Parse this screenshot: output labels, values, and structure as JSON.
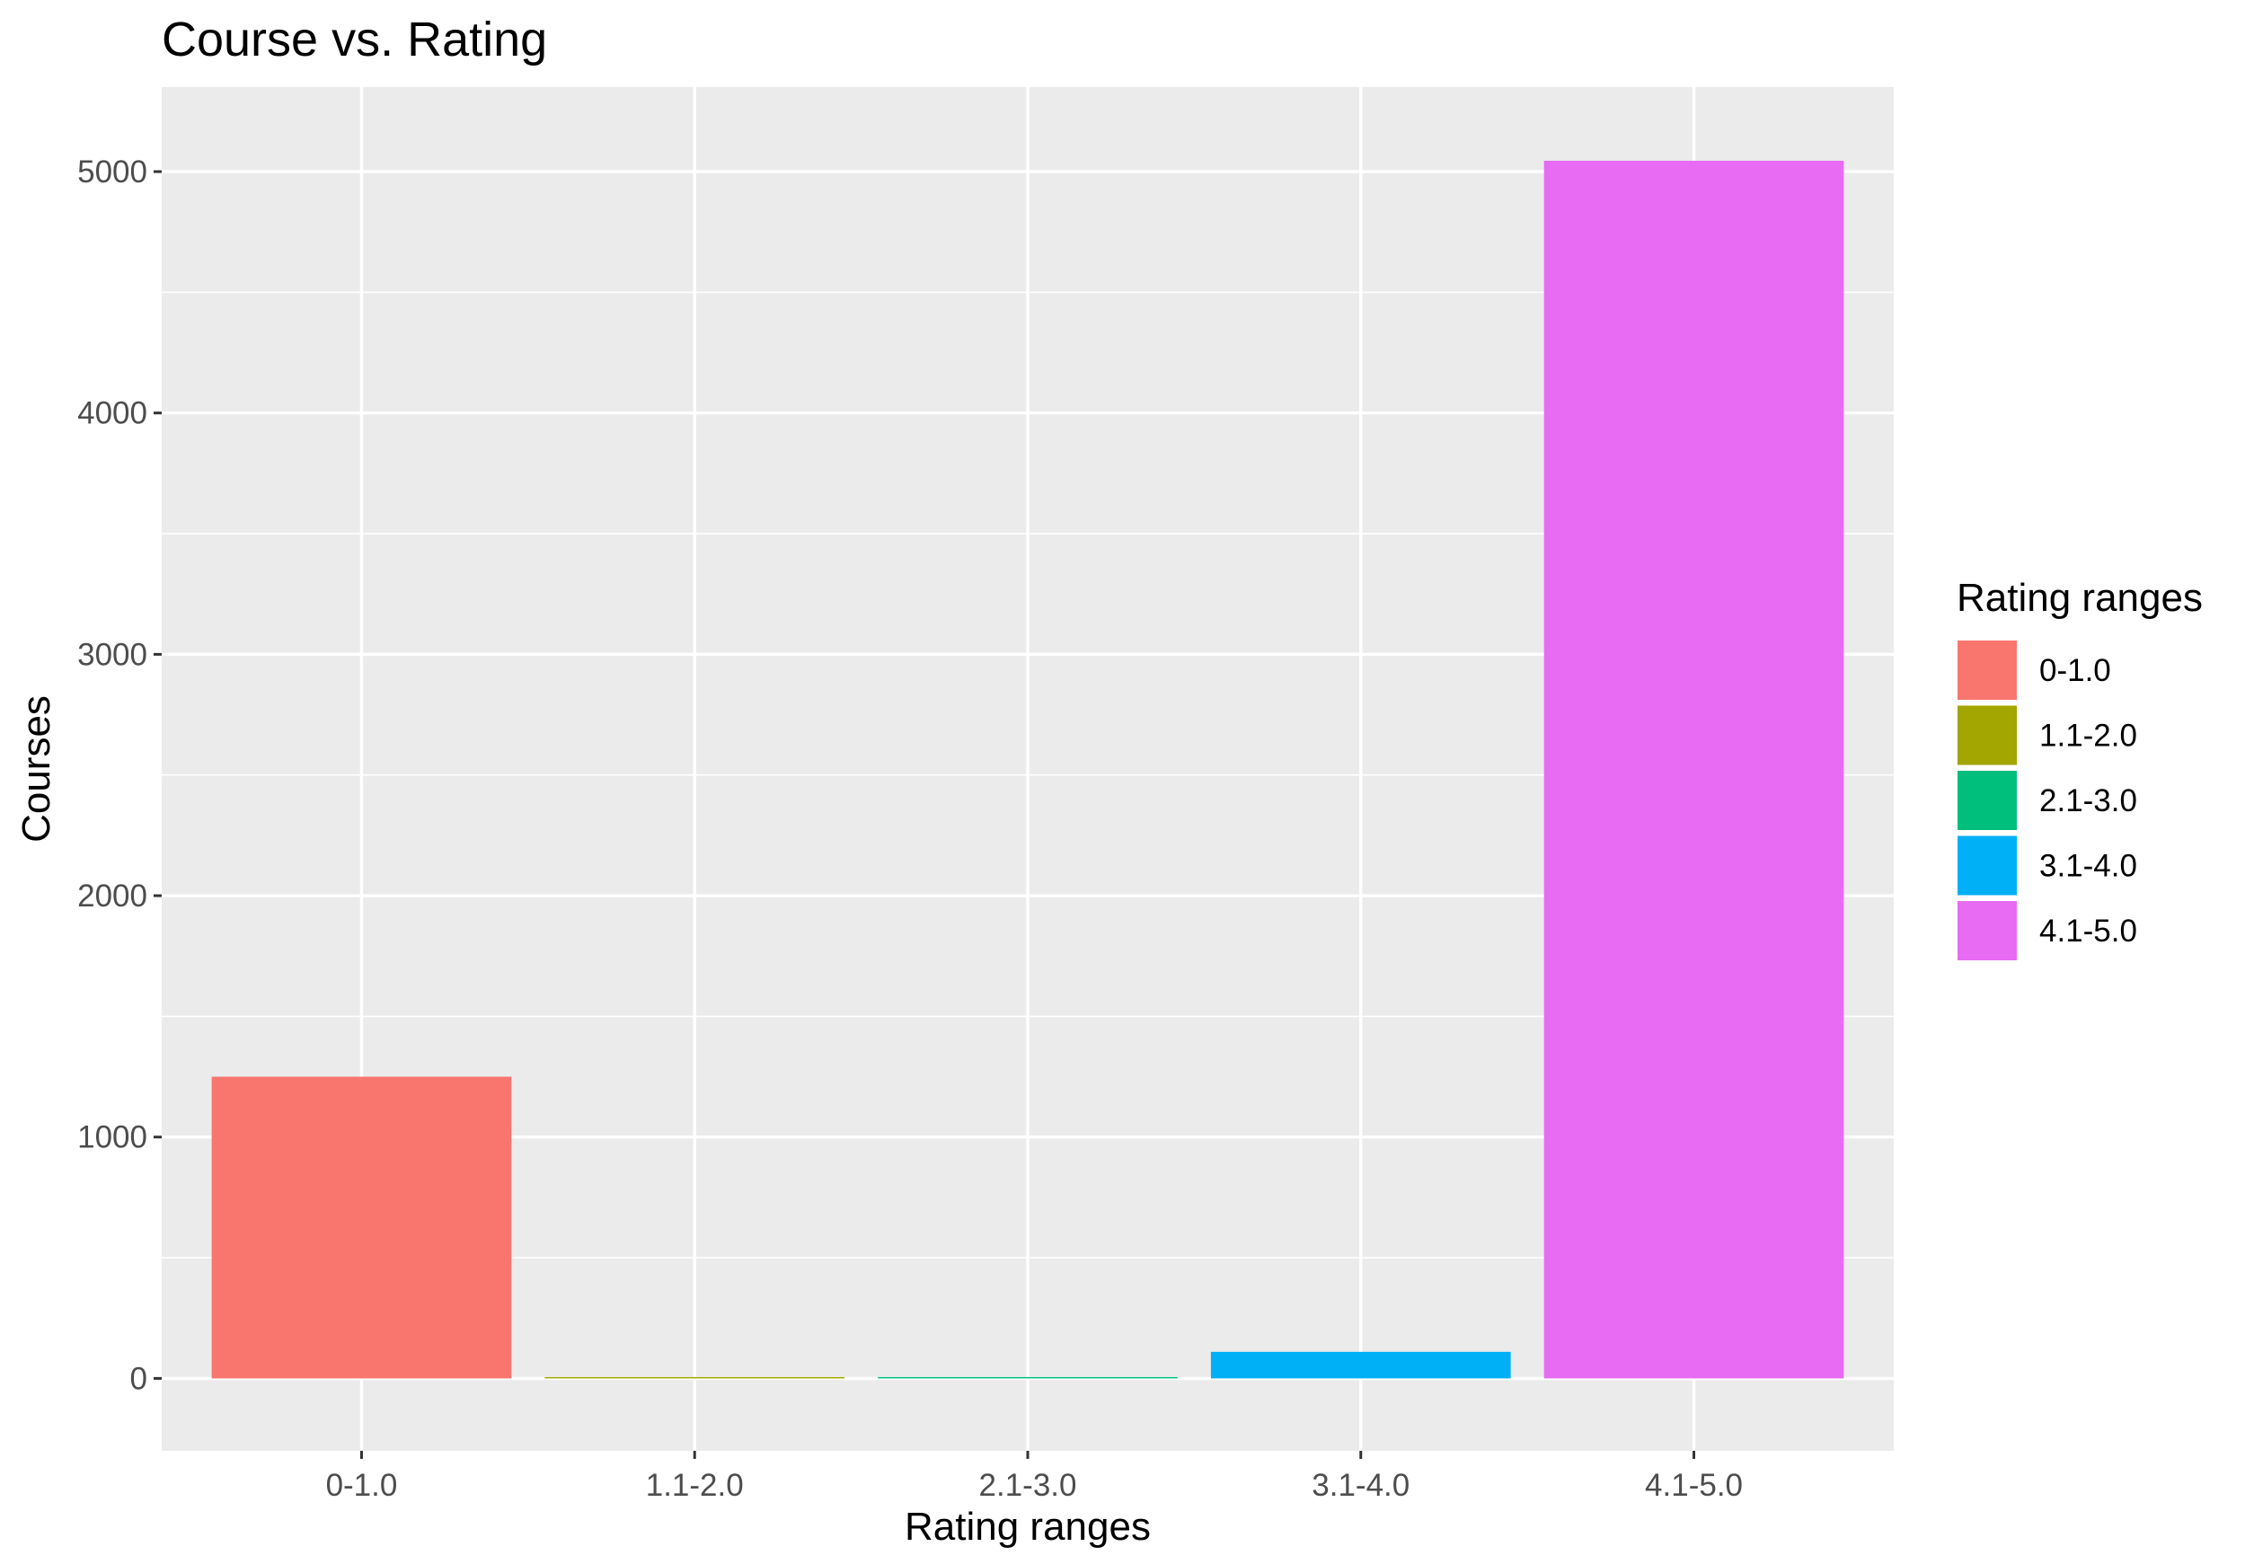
{
  "chart_data": {
    "type": "bar",
    "title": "Course vs. Rating",
    "xlabel": "Rating ranges",
    "ylabel": "Courses",
    "categories": [
      "0-1.0",
      "1.1-2.0",
      "2.1-3.0",
      "3.1-4.0",
      "4.1-5.0"
    ],
    "values": [
      1250,
      5,
      3,
      110,
      5045
    ],
    "colors": [
      "#F8766D",
      "#A3A500",
      "#00BF7D",
      "#00B0F6",
      "#E76BF3"
    ],
    "yticks": [
      0,
      1000,
      2000,
      3000,
      4000,
      5000
    ],
    "ylim": [
      -300,
      5350
    ],
    "grid": true,
    "panel_background": "#EBEBEB",
    "legend": {
      "title": "Rating ranges",
      "position": "right",
      "items": [
        "0-1.0",
        "1.1-2.0",
        "2.1-3.0",
        "3.1-4.0",
        "4.1-5.0"
      ]
    }
  }
}
